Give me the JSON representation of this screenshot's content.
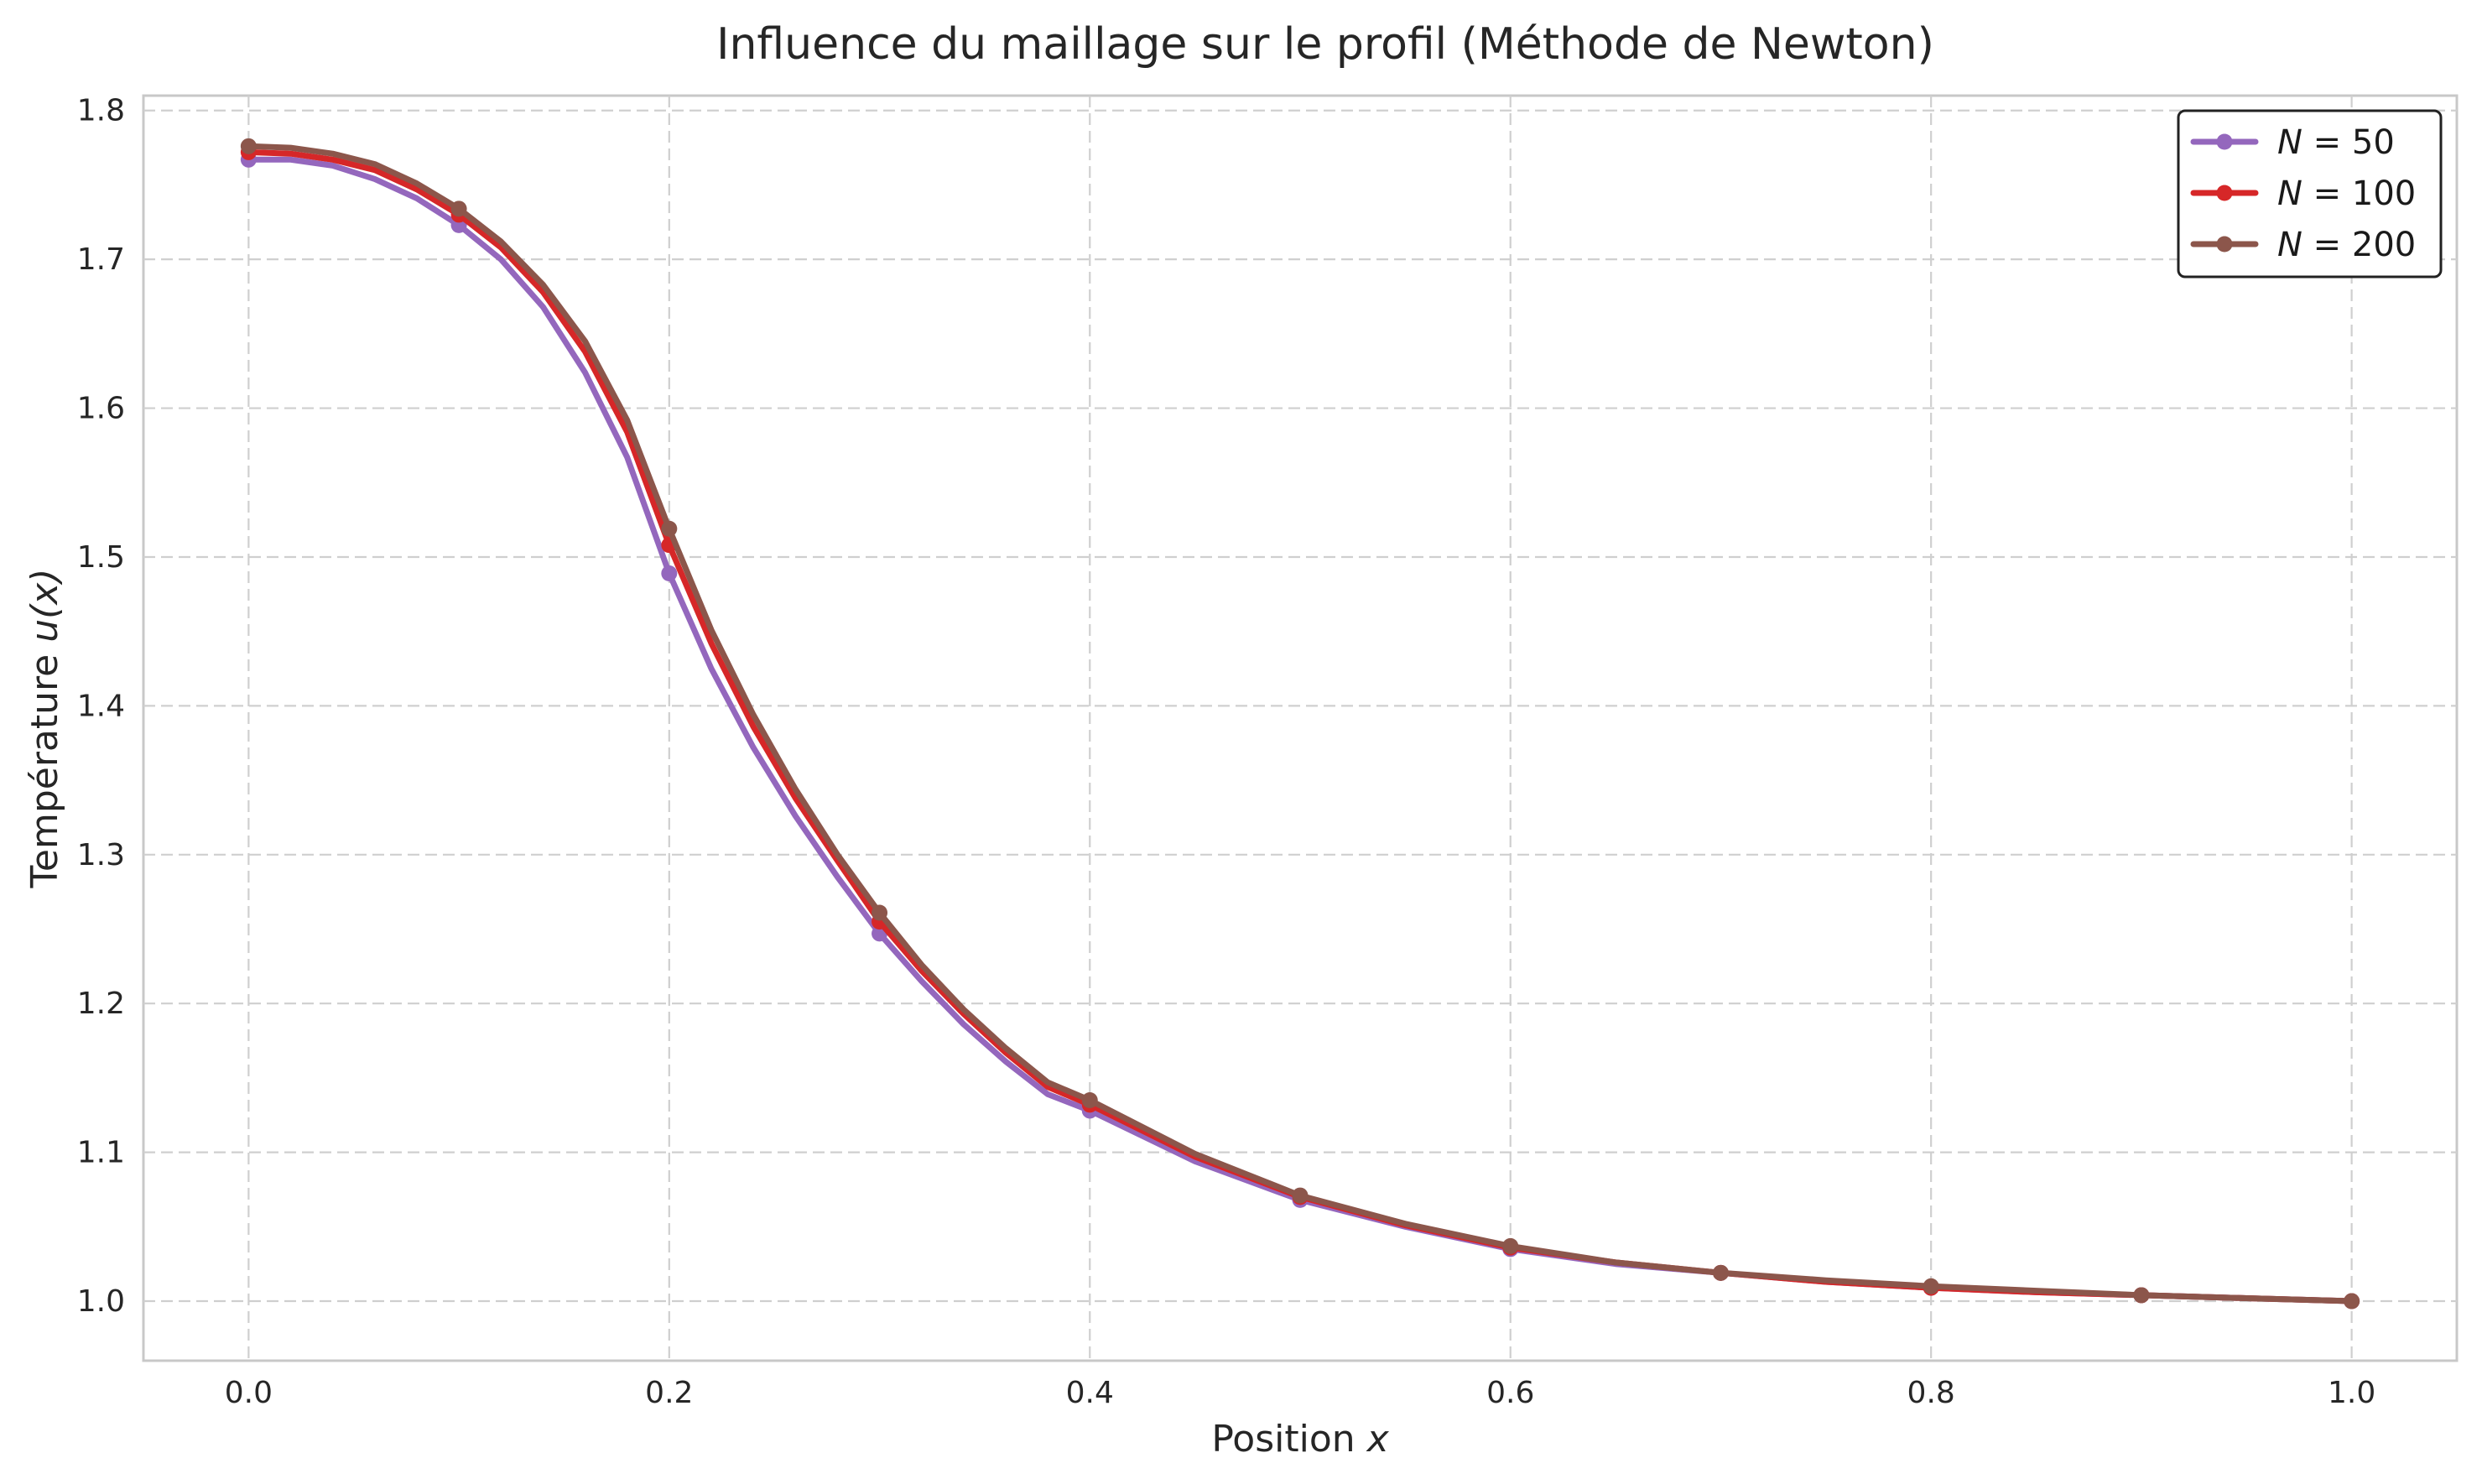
{
  "chart_data": {
    "type": "line",
    "title": "Influence du maillage sur le profil (Méthode de Newton)",
    "xlabel": "Position x",
    "ylabel": "Température u(x)",
    "xlim": [
      -0.05,
      1.05
    ],
    "ylim": [
      0.96,
      1.81
    ],
    "xticks": [
      0.0,
      0.2,
      0.4,
      0.6,
      0.8,
      1.0
    ],
    "xtick_labels": [
      "0.0",
      "0.2",
      "0.4",
      "0.6",
      "0.8",
      "1.0"
    ],
    "yticks": [
      1.0,
      1.1,
      1.2,
      1.3,
      1.4,
      1.5,
      1.6,
      1.7,
      1.8
    ],
    "ytick_labels": [
      "1.0",
      "1.1",
      "1.2",
      "1.3",
      "1.4",
      "1.5",
      "1.6",
      "1.7",
      "1.8"
    ],
    "grid": true,
    "legend_position": "top-right",
    "x": [
      0.0,
      0.02,
      0.04,
      0.06,
      0.08,
      0.1,
      0.12,
      0.14,
      0.16,
      0.18,
      0.2,
      0.22,
      0.24,
      0.26,
      0.28,
      0.3,
      0.32,
      0.34,
      0.36,
      0.38,
      0.4,
      0.45,
      0.5,
      0.55,
      0.6,
      0.65,
      0.7,
      0.75,
      0.8,
      0.85,
      0.9,
      0.95,
      1.0
    ],
    "marker_x": [
      0.0,
      0.1,
      0.2,
      0.3,
      0.4,
      0.5,
      0.6,
      0.7,
      0.8,
      0.9,
      1.0
    ],
    "series": [
      {
        "name": "N = 50",
        "color": "#9467bd",
        "values": [
          1.767,
          1.767,
          1.763,
          1.754,
          1.741,
          1.723,
          1.7,
          1.668,
          1.624,
          1.567,
          1.489,
          1.425,
          1.372,
          1.326,
          1.285,
          1.247,
          1.215,
          1.186,
          1.161,
          1.139,
          1.128,
          1.094,
          1.068,
          1.05,
          1.035,
          1.025,
          1.019,
          1.013,
          1.009,
          1.006,
          1.004,
          1.002,
          1.0
        ],
        "marker_values": [
          1.767,
          1.723,
          1.489,
          1.247,
          1.128,
          1.068,
          1.035,
          1.019,
          1.009,
          1.004,
          1.0
        ]
      },
      {
        "name": "N = 100",
        "color": "#d62728",
        "values": [
          1.772,
          1.771,
          1.767,
          1.76,
          1.747,
          1.73,
          1.708,
          1.678,
          1.638,
          1.584,
          1.508,
          1.442,
          1.386,
          1.338,
          1.296,
          1.255,
          1.222,
          1.193,
          1.167,
          1.144,
          1.132,
          1.097,
          1.07,
          1.051,
          1.036,
          1.026,
          1.019,
          1.013,
          1.009,
          1.006,
          1.004,
          1.002,
          1.0
        ],
        "marker_values": [
          1.772,
          1.73,
          1.508,
          1.255,
          1.132,
          1.07,
          1.036,
          1.019,
          1.009,
          1.004,
          1.0
        ]
      },
      {
        "name": "N = 200",
        "color": "#8c564b",
        "values": [
          1.776,
          1.775,
          1.771,
          1.764,
          1.751,
          1.734,
          1.712,
          1.683,
          1.645,
          1.592,
          1.519,
          1.451,
          1.394,
          1.344,
          1.3,
          1.261,
          1.226,
          1.196,
          1.17,
          1.147,
          1.135,
          1.099,
          1.071,
          1.052,
          1.037,
          1.026,
          1.019,
          1.014,
          1.01,
          1.007,
          1.004,
          1.002,
          1.0
        ],
        "marker_values": [
          1.776,
          1.734,
          1.519,
          1.261,
          1.135,
          1.071,
          1.037,
          1.019,
          1.01,
          1.004,
          1.0
        ]
      }
    ]
  }
}
